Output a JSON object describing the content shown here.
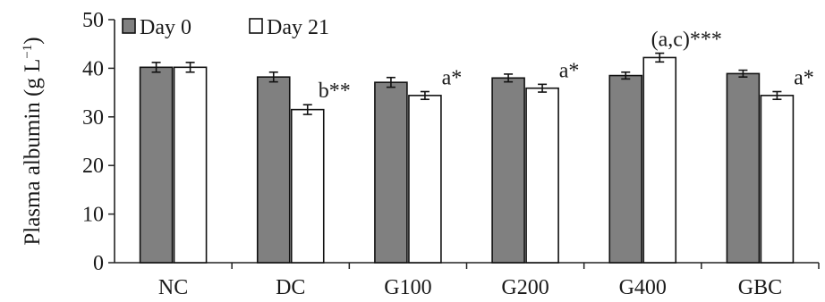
{
  "chart_data": {
    "type": "bar",
    "title": "",
    "xlabel": "",
    "ylabel": "Plasma albumin (g L",
    "ylabel_superscript": "−1",
    "ylim": [
      0,
      50
    ],
    "yticks": [
      "0",
      "10",
      "20",
      "30",
      "40",
      "50"
    ],
    "categories": [
      "NC",
      "DC",
      "G100",
      "G200",
      "G400",
      "GBC"
    ],
    "series": [
      {
        "name": "Day 0",
        "color": "#808080",
        "values": [
          40.2,
          38.2,
          37.1,
          38.0,
          38.5,
          38.9
        ],
        "errors": [
          1.0,
          1.0,
          1.0,
          0.8,
          0.7,
          0.7
        ]
      },
      {
        "name": "Day 21",
        "color": "#ffffff",
        "values": [
          40.2,
          31.5,
          34.4,
          35.9,
          42.2,
          34.4
        ],
        "errors": [
          1.0,
          1.0,
          0.8,
          0.8,
          0.9,
          0.8
        ]
      }
    ],
    "annotations": [
      "",
      "b**",
      "a*",
      "a*",
      "(a,c)***",
      "a*"
    ],
    "legend_position": "top-left",
    "grid": false
  }
}
